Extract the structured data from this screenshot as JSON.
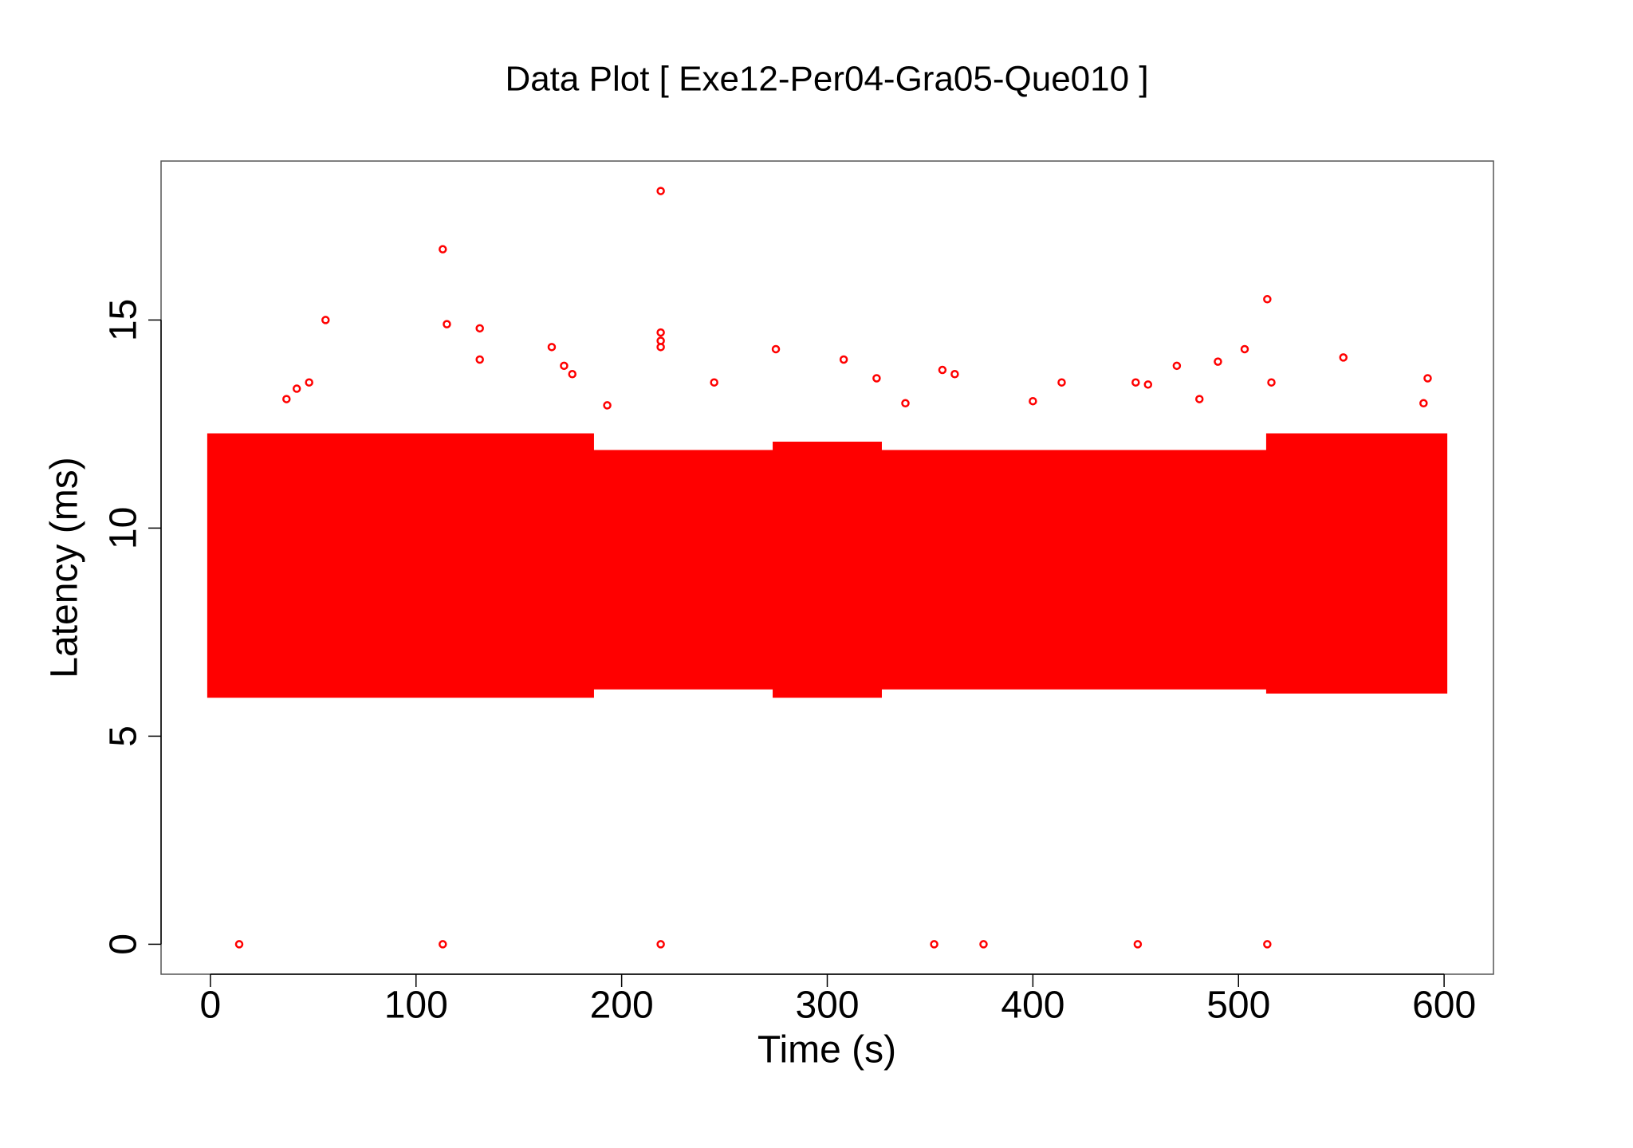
{
  "chart_data": {
    "type": "scatter",
    "title": "Data Plot [ Exe12-Per04-Gra05-Que010 ]",
    "x_label": "Time (s)",
    "y_label": "Latency (ms)",
    "color": "#ff0000",
    "xlim": [
      -24,
      624
    ],
    "ylim": [
      -0.72,
      18.82
    ],
    "xticks": [
      0,
      100,
      200,
      300,
      400,
      500,
      600
    ],
    "yticks": [
      0,
      5,
      10,
      15
    ],
    "x": [
      14,
      113,
      219,
      352,
      376,
      451,
      514,
      219,
      113,
      56,
      115,
      131,
      514,
      219,
      219,
      219,
      166,
      131,
      275,
      308,
      551,
      503,
      490,
      470,
      356,
      592,
      414,
      450,
      456,
      362,
      37,
      48,
      42,
      176,
      172,
      324,
      516,
      338,
      400,
      481,
      245,
      193,
      590
    ],
    "y": [
      0,
      0,
      0,
      0,
      0,
      0,
      0,
      18.1,
      16.7,
      15.0,
      14.9,
      14.8,
      15.5,
      14.7,
      14.5,
      14.35,
      14.35,
      14.05,
      14.3,
      14.05,
      14.1,
      14.3,
      14.0,
      13.9,
      13.8,
      13.6,
      13.5,
      13.5,
      13.45,
      13.7,
      13.1,
      13.5,
      13.35,
      13.7,
      13.9,
      13.6,
      13.5,
      13.0,
      13.05,
      13.1,
      13.5,
      12.95,
      13.0
    ],
    "dense_regions": [
      {
        "x": [
          0,
          185
        ],
        "y": [
          6.0,
          12.2
        ]
      },
      {
        "x": [
          185,
          275
        ],
        "y": [
          6.2,
          11.8
        ]
      },
      {
        "x": [
          275,
          325
        ],
        "y": [
          6.0,
          12.0
        ]
      },
      {
        "x": [
          325,
          515
        ],
        "y": [
          6.2,
          11.8
        ]
      },
      {
        "x": [
          515,
          600
        ],
        "y": [
          6.1,
          12.2
        ]
      }
    ]
  }
}
